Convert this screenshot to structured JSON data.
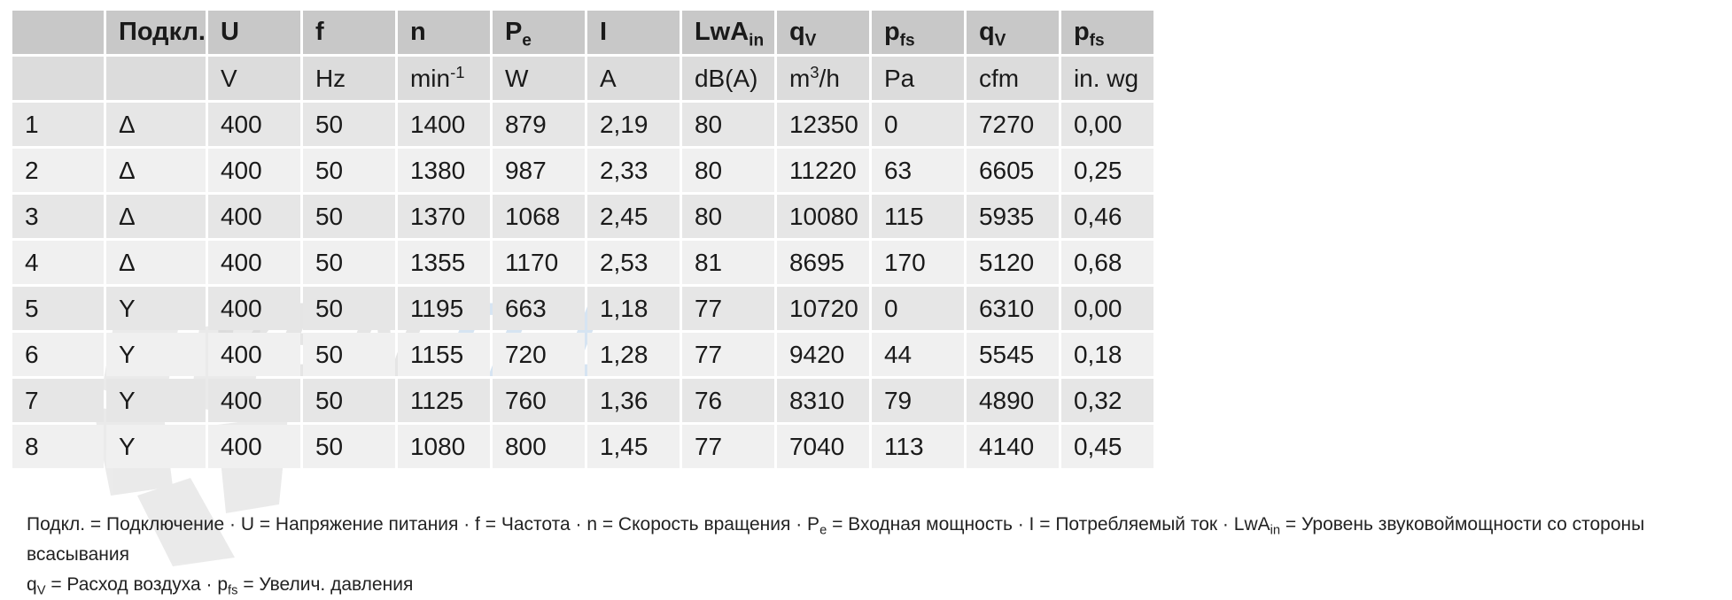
{
  "table": {
    "symbols": [
      {
        "main": "",
        "sub": ""
      },
      {
        "main": "Подкл.",
        "sub": ""
      },
      {
        "main": "U",
        "sub": ""
      },
      {
        "main": "f",
        "sub": ""
      },
      {
        "main": "n",
        "sub": ""
      },
      {
        "main": "P",
        "sub": "e"
      },
      {
        "main": "I",
        "sub": ""
      },
      {
        "main": "LwA",
        "sub": "in"
      },
      {
        "main": "q",
        "sub": "V"
      },
      {
        "main": "p",
        "sub": "fs"
      },
      {
        "main": "q",
        "sub": "V"
      },
      {
        "main": "p",
        "sub": "fs"
      }
    ],
    "units": [
      {
        "main": "",
        "sup": ""
      },
      {
        "main": "",
        "sup": ""
      },
      {
        "main": "V",
        "sup": ""
      },
      {
        "main": "Hz",
        "sup": ""
      },
      {
        "main": "min",
        "sup": "-1"
      },
      {
        "main": "W",
        "sup": ""
      },
      {
        "main": "A",
        "sup": ""
      },
      {
        "main": "dB(A)",
        "sup": ""
      },
      {
        "main": "m",
        "sup": "3",
        "tail": "/h"
      },
      {
        "main": "Pa",
        "sup": ""
      },
      {
        "main": "cfm",
        "sup": ""
      },
      {
        "main": "in. wg",
        "sup": ""
      }
    ],
    "rows": [
      [
        "1",
        "Δ",
        "400",
        "50",
        "1400",
        "879",
        "2,19",
        "80",
        "12350",
        "0",
        "7270",
        "0,00"
      ],
      [
        "2",
        "Δ",
        "400",
        "50",
        "1380",
        "987",
        "2,33",
        "80",
        "11220",
        "63",
        "6605",
        "0,25"
      ],
      [
        "3",
        "Δ",
        "400",
        "50",
        "1370",
        "1068",
        "2,45",
        "80",
        "10080",
        "115",
        "5935",
        "0,46"
      ],
      [
        "4",
        "Δ",
        "400",
        "50",
        "1355",
        "1170",
        "2,53",
        "81",
        "8695",
        "170",
        "5120",
        "0,68"
      ],
      [
        "5",
        "Y",
        "400",
        "50",
        "1195",
        "663",
        "1,18",
        "77",
        "10720",
        "0",
        "6310",
        "0,00"
      ],
      [
        "6",
        "Y",
        "400",
        "50",
        "1155",
        "720",
        "1,28",
        "77",
        "9420",
        "44",
        "5545",
        "0,18"
      ],
      [
        "7",
        "Y",
        "400",
        "50",
        "1125",
        "760",
        "1,36",
        "76",
        "8310",
        "79",
        "4890",
        "0,32"
      ],
      [
        "8",
        "Y",
        "400",
        "50",
        "1080",
        "800",
        "1,45",
        "77",
        "7040",
        "113",
        "4140",
        "0,45"
      ]
    ]
  },
  "legend": {
    "line1": [
      {
        "t": "Подкл. = Подключение · U = Напряжение питания · f = Частота · n = Скорость вращения · P"
      },
      {
        "s": "e"
      },
      {
        "t": " = Входная мощность · I = Потребляемый ток · LwA"
      },
      {
        "s": "in"
      },
      {
        "t": " = Уровень звуковоймощности со стороны всасывания"
      }
    ],
    "line2": [
      {
        "t": "q"
      },
      {
        "s": "V"
      },
      {
        "t": " = Расход воздуха · p"
      },
      {
        "s": "fs"
      },
      {
        "t": " = Увелич. давления"
      }
    ]
  },
  "watermark": {
    "logo_text": "VENTEL",
    "color_dark": "#d9d9d9",
    "color_accent": "#cfe0ef"
  }
}
